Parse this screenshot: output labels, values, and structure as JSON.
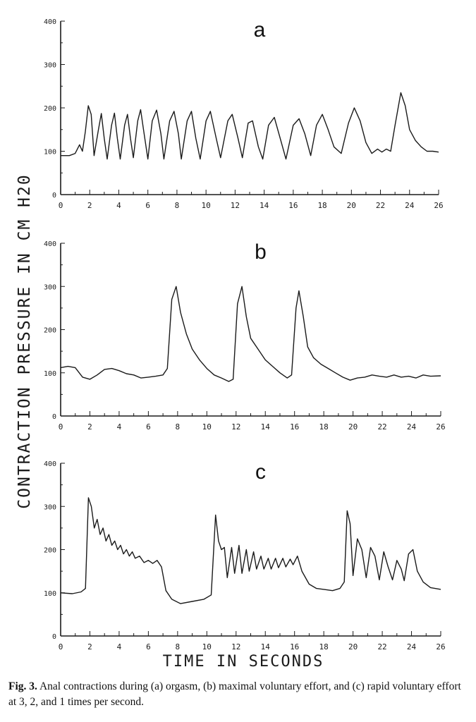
{
  "figure": {
    "ylabel": "CONTRACTION PRESSURE IN CM H20",
    "xlabel": "TIME IN SECONDS",
    "caption_label": "Fig. 3.",
    "caption_text": "Anal contractions during (a) orgasm, (b) maximal voluntary effort, and (c) rapid voluntary effort at 3, 2, and 1 times per second."
  },
  "chart_data": [
    {
      "type": "line",
      "title": "a",
      "xlim": [
        0,
        26
      ],
      "ylim": [
        0,
        400
      ],
      "x_ticks": [
        "0",
        "2",
        "4",
        "6",
        "8",
        "10",
        "12",
        "14",
        "16",
        "18",
        "20",
        "22",
        "24",
        "26"
      ],
      "y_ticks": [
        "0",
        "100",
        "200",
        "300",
        "400"
      ],
      "series": [
        {
          "points": [
            [
              0,
              90
            ],
            [
              0.6,
              90
            ],
            [
              1.0,
              95
            ],
            [
              1.3,
              115
            ],
            [
              1.5,
              100
            ],
            [
              1.7,
              145
            ],
            [
              1.9,
              205
            ],
            [
              2.1,
              185
            ],
            [
              2.3,
              90
            ],
            [
              2.6,
              150
            ],
            [
              2.8,
              187
            ],
            [
              3.0,
              130
            ],
            [
              3.2,
              82
            ],
            [
              3.5,
              160
            ],
            [
              3.7,
              188
            ],
            [
              3.9,
              130
            ],
            [
              4.1,
              82
            ],
            [
              4.4,
              160
            ],
            [
              4.6,
              185
            ],
            [
              4.8,
              130
            ],
            [
              5.0,
              85
            ],
            [
              5.3,
              170
            ],
            [
              5.5,
              196
            ],
            [
              5.7,
              150
            ],
            [
              6.0,
              82
            ],
            [
              6.3,
              170
            ],
            [
              6.6,
              195
            ],
            [
              6.9,
              140
            ],
            [
              7.1,
              82
            ],
            [
              7.5,
              170
            ],
            [
              7.8,
              192
            ],
            [
              8.1,
              140
            ],
            [
              8.3,
              82
            ],
            [
              8.7,
              170
            ],
            [
              9.0,
              192
            ],
            [
              9.3,
              130
            ],
            [
              9.6,
              82
            ],
            [
              10.0,
              170
            ],
            [
              10.3,
              192
            ],
            [
              10.7,
              130
            ],
            [
              11.0,
              85
            ],
            [
              11.5,
              170
            ],
            [
              11.8,
              185
            ],
            [
              12.2,
              130
            ],
            [
              12.5,
              85
            ],
            [
              12.9,
              165
            ],
            [
              13.2,
              170
            ],
            [
              13.6,
              110
            ],
            [
              13.9,
              82
            ],
            [
              14.3,
              160
            ],
            [
              14.7,
              178
            ],
            [
              15.1,
              130
            ],
            [
              15.5,
              82
            ],
            [
              16.0,
              160
            ],
            [
              16.4,
              175
            ],
            [
              16.8,
              140
            ],
            [
              17.2,
              90
            ],
            [
              17.6,
              160
            ],
            [
              18.0,
              185
            ],
            [
              18.4,
              150
            ],
            [
              18.8,
              110
            ],
            [
              19.3,
              95
            ],
            [
              19.8,
              165
            ],
            [
              20.2,
              200
            ],
            [
              20.6,
              170
            ],
            [
              21.0,
              120
            ],
            [
              21.4,
              95
            ],
            [
              21.8,
              105
            ],
            [
              22.1,
              98
            ],
            [
              22.4,
              105
            ],
            [
              22.7,
              100
            ],
            [
              23.0,
              160
            ],
            [
              23.4,
              235
            ],
            [
              23.7,
              205
            ],
            [
              24.0,
              150
            ],
            [
              24.4,
              125
            ],
            [
              24.8,
              110
            ],
            [
              25.2,
              100
            ],
            [
              25.6,
              100
            ],
            [
              26,
              98
            ]
          ]
        }
      ]
    },
    {
      "type": "line",
      "title": "b",
      "xlim": [
        0,
        26
      ],
      "ylim": [
        0,
        400
      ],
      "x_ticks": [
        "0",
        "2",
        "4",
        "6",
        "8",
        "10",
        "12",
        "14",
        "16",
        "18",
        "20",
        "22",
        "24",
        "26"
      ],
      "y_ticks": [
        "0",
        "100",
        "200",
        "300",
        "400"
      ],
      "series": [
        {
          "points": [
            [
              0,
              112
            ],
            [
              0.5,
              115
            ],
            [
              1.0,
              112
            ],
            [
              1.5,
              90
            ],
            [
              2.0,
              85
            ],
            [
              2.5,
              95
            ],
            [
              3.0,
              108
            ],
            [
              3.5,
              110
            ],
            [
              4.0,
              105
            ],
            [
              4.5,
              98
            ],
            [
              5.0,
              95
            ],
            [
              5.5,
              88
            ],
            [
              6.0,
              90
            ],
            [
              6.5,
              92
            ],
            [
              7.0,
              95
            ],
            [
              7.3,
              110
            ],
            [
              7.6,
              270
            ],
            [
              7.9,
              300
            ],
            [
              8.2,
              240
            ],
            [
              8.6,
              190
            ],
            [
              9.0,
              155
            ],
            [
              9.5,
              130
            ],
            [
              10.0,
              110
            ],
            [
              10.5,
              95
            ],
            [
              11.0,
              88
            ],
            [
              11.5,
              80
            ],
            [
              11.8,
              85
            ],
            [
              12.1,
              260
            ],
            [
              12.4,
              300
            ],
            [
              12.7,
              230
            ],
            [
              13.0,
              180
            ],
            [
              13.5,
              155
            ],
            [
              14.0,
              130
            ],
            [
              14.5,
              115
            ],
            [
              15.0,
              100
            ],
            [
              15.5,
              88
            ],
            [
              15.8,
              95
            ],
            [
              16.1,
              250
            ],
            [
              16.3,
              290
            ],
            [
              16.6,
              230
            ],
            [
              16.9,
              160
            ],
            [
              17.3,
              135
            ],
            [
              17.8,
              120
            ],
            [
              18.3,
              110
            ],
            [
              18.8,
              100
            ],
            [
              19.3,
              90
            ],
            [
              19.8,
              83
            ],
            [
              20.3,
              88
            ],
            [
              20.8,
              90
            ],
            [
              21.3,
              95
            ],
            [
              21.8,
              92
            ],
            [
              22.3,
              90
            ],
            [
              22.8,
              95
            ],
            [
              23.3,
              90
            ],
            [
              23.8,
              92
            ],
            [
              24.3,
              88
            ],
            [
              24.8,
              95
            ],
            [
              25.3,
              92
            ],
            [
              26,
              93
            ]
          ]
        }
      ]
    },
    {
      "type": "line",
      "title": "c",
      "xlim": [
        0,
        26
      ],
      "ylim": [
        0,
        400
      ],
      "x_ticks": [
        "0",
        "2",
        "4",
        "6",
        "8",
        "10",
        "12",
        "14",
        "16",
        "18",
        "20",
        "22",
        "24",
        "26"
      ],
      "y_ticks": [
        "0",
        "100",
        "200",
        "300",
        "400"
      ],
      "series": [
        {
          "points": [
            [
              0,
              100
            ],
            [
              0.8,
              98
            ],
            [
              1.4,
              102
            ],
            [
              1.7,
              110
            ],
            [
              1.9,
              320
            ],
            [
              2.1,
              300
            ],
            [
              2.3,
              250
            ],
            [
              2.5,
              270
            ],
            [
              2.7,
              235
            ],
            [
              2.9,
              250
            ],
            [
              3.1,
              220
            ],
            [
              3.3,
              235
            ],
            [
              3.5,
              210
            ],
            [
              3.7,
              220
            ],
            [
              3.9,
              200
            ],
            [
              4.1,
              210
            ],
            [
              4.3,
              190
            ],
            [
              4.5,
              200
            ],
            [
              4.7,
              185
            ],
            [
              4.9,
              195
            ],
            [
              5.1,
              180
            ],
            [
              5.4,
              185
            ],
            [
              5.7,
              170
            ],
            [
              6.0,
              175
            ],
            [
              6.3,
              168
            ],
            [
              6.6,
              175
            ],
            [
              6.9,
              160
            ],
            [
              7.2,
              105
            ],
            [
              7.6,
              85
            ],
            [
              8.2,
              75
            ],
            [
              9.0,
              80
            ],
            [
              9.8,
              85
            ],
            [
              10.3,
              95
            ],
            [
              10.6,
              280
            ],
            [
              10.8,
              220
            ],
            [
              11.0,
              200
            ],
            [
              11.2,
              205
            ],
            [
              11.4,
              135
            ],
            [
              11.7,
              205
            ],
            [
              11.9,
              145
            ],
            [
              12.2,
              210
            ],
            [
              12.4,
              145
            ],
            [
              12.7,
              200
            ],
            [
              12.9,
              150
            ],
            [
              13.2,
              195
            ],
            [
              13.4,
              155
            ],
            [
              13.7,
              185
            ],
            [
              13.9,
              155
            ],
            [
              14.2,
              180
            ],
            [
              14.4,
              155
            ],
            [
              14.7,
              180
            ],
            [
              14.9,
              158
            ],
            [
              15.2,
              180
            ],
            [
              15.4,
              160
            ],
            [
              15.7,
              178
            ],
            [
              15.9,
              165
            ],
            [
              16.2,
              185
            ],
            [
              16.5,
              150
            ],
            [
              17.0,
              120
            ],
            [
              17.5,
              110
            ],
            [
              18.0,
              108
            ],
            [
              18.6,
              105
            ],
            [
              19.1,
              110
            ],
            [
              19.4,
              125
            ],
            [
              19.6,
              290
            ],
            [
              19.8,
              260
            ],
            [
              20.0,
              140
            ],
            [
              20.3,
              225
            ],
            [
              20.6,
              200
            ],
            [
              20.9,
              135
            ],
            [
              21.2,
              205
            ],
            [
              21.5,
              185
            ],
            [
              21.8,
              130
            ],
            [
              22.1,
              195
            ],
            [
              22.4,
              160
            ],
            [
              22.7,
              130
            ],
            [
              23.0,
              175
            ],
            [
              23.3,
              155
            ],
            [
              23.5,
              128
            ],
            [
              23.8,
              190
            ],
            [
              24.1,
              200
            ],
            [
              24.4,
              150
            ],
            [
              24.8,
              125
            ],
            [
              25.3,
              112
            ],
            [
              26,
              108
            ]
          ]
        }
      ]
    }
  ]
}
